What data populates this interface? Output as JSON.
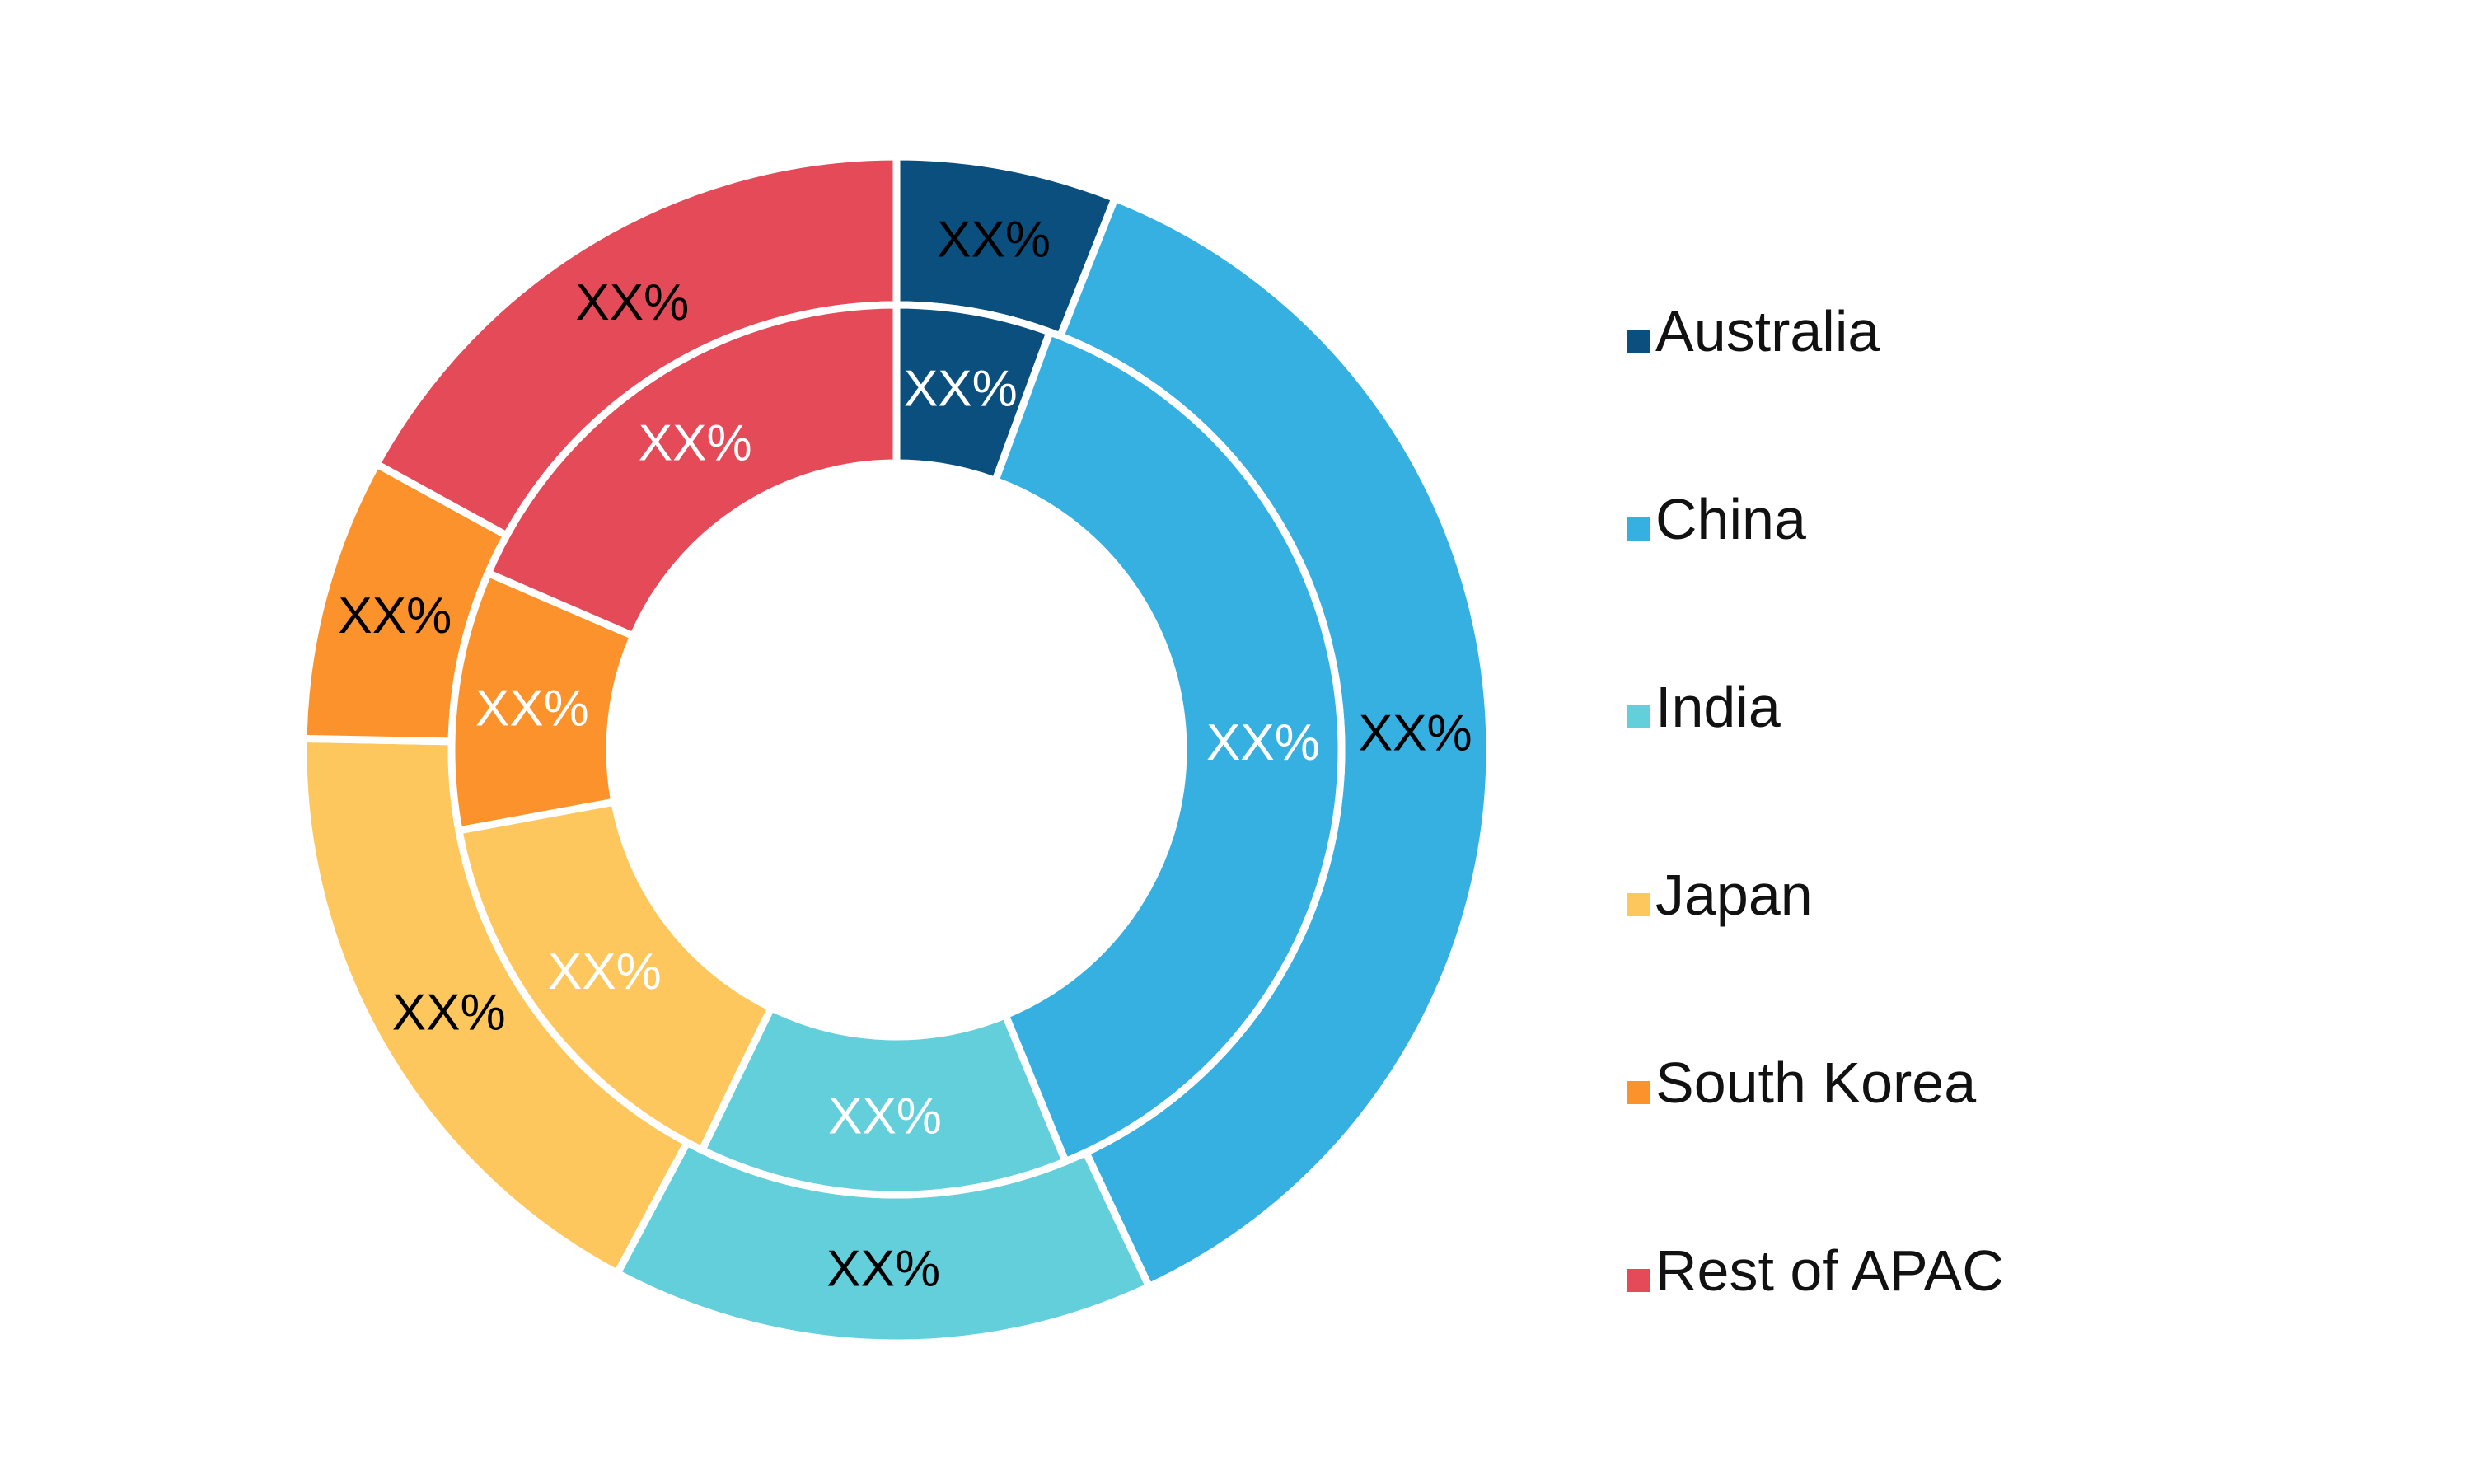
{
  "chart_data": {
    "type": "pie",
    "subtype": "double-donut",
    "title": "",
    "categories": [
      "Australia",
      "China",
      "India",
      "Japan",
      "South Korea",
      "Rest of APAC"
    ],
    "colors": [
      "#0b4f7e",
      "#36afe1",
      "#63cfda",
      "#fec75e",
      "#fb922c",
      "#e44a57"
    ],
    "series": [
      {
        "ring": "inner",
        "values": [
          5.6,
          38.2,
          13.4,
          14.9,
          9.4,
          18.5
        ],
        "labels": [
          "XX%",
          "XX%",
          "XX%",
          "XX%",
          "XX%",
          "XX%"
        ],
        "label_color": "#ffffff"
      },
      {
        "ring": "outer",
        "values": [
          6.0,
          37.0,
          14.8,
          17.5,
          7.7,
          17.0
        ],
        "labels": [
          "XX%",
          "XX%",
          "XX%",
          "XX%",
          "XX%",
          "XX%"
        ],
        "label_color": "#000000"
      }
    ],
    "legend": {
      "position": "right",
      "entries": [
        "Australia",
        "China",
        "India",
        "Japan",
        "South Korea",
        "Rest of APAC"
      ]
    }
  }
}
